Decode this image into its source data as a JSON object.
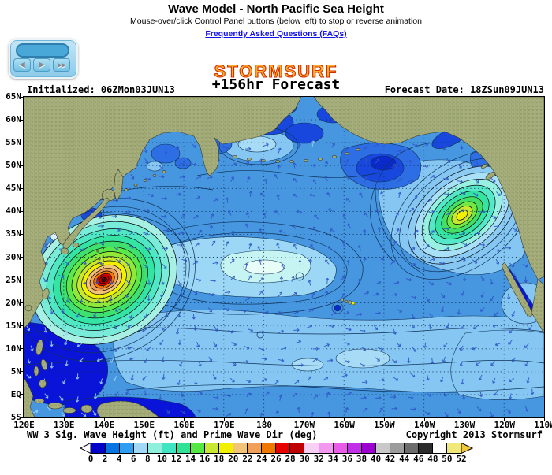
{
  "header": {
    "title": "Wave Model - North Pacific Sea Height",
    "subtitle": "Mouse-over/click Control Panel buttons (below left) to stop or reverse animation",
    "faq_link": "Frequently Asked Questions (FAQs)"
  },
  "control_panel": {
    "buttons": [
      {
        "name": "step-back",
        "glyph": "◀"
      },
      {
        "name": "play-forward",
        "glyph": "▶"
      },
      {
        "name": "fast-forward",
        "glyph": "▶▶"
      }
    ]
  },
  "branding": {
    "logo_text": "STORMSURF"
  },
  "forecast_header": {
    "hour": "+156hr Forecast",
    "initialized": "Initialized: 06ZMon03JUN13",
    "forecast_date": "Forecast Date: 18ZSun09JUN13"
  },
  "map": {
    "lat_labels": [
      "65N",
      "60N",
      "55N",
      "50N",
      "45N",
      "40N",
      "35N",
      "30N",
      "25N",
      "20N",
      "15N",
      "10N",
      "5N",
      "EQ",
      "5S"
    ],
    "lon_labels": [
      "120E",
      "130E",
      "140E",
      "150E",
      "160E",
      "170E",
      "180",
      "170W",
      "160W",
      "150W",
      "140W",
      "130W",
      "120W",
      "110W"
    ],
    "caption_left": "WW 3 Sig. Wave Height (ft) and Prime Wave Dir (deg)",
    "caption_right": "Copyright 2013 Stormsurf"
  },
  "colorbar": {
    "tick_labels": [
      "0",
      "2",
      "4",
      "6",
      "8",
      "10",
      "12",
      "14",
      "16",
      "18",
      "20",
      "22",
      "24",
      "26",
      "28",
      "30",
      "32",
      "34",
      "36",
      "38",
      "40",
      "42",
      "44",
      "46",
      "48",
      "50",
      "52"
    ],
    "segment_colors": [
      "#0000CD",
      "#0473E4",
      "#2E9CF0",
      "#A2D9F7",
      "#8EF0DC",
      "#40E4C4",
      "#30E296",
      "#55E845",
      "#C8E832",
      "#F0F000",
      "#F2C478",
      "#F0A058",
      "#F07800",
      "#E80000",
      "#C00000",
      "#F8D0F4",
      "#F298F0",
      "#E85CE8",
      "#C030E8",
      "#9C00D0",
      "#C8C8C8",
      "#9C9C9C",
      "#6C6C6C",
      "#2C2C2C",
      "#FFFFFF",
      "#F0E878"
    ],
    "left_arrow_color": "#FFFFFF",
    "right_arrow_color": "#F0C83C"
  },
  "colors": {
    "ocean": "#4796E0",
    "land": "#A6AE7C",
    "link": "#1414E8"
  }
}
